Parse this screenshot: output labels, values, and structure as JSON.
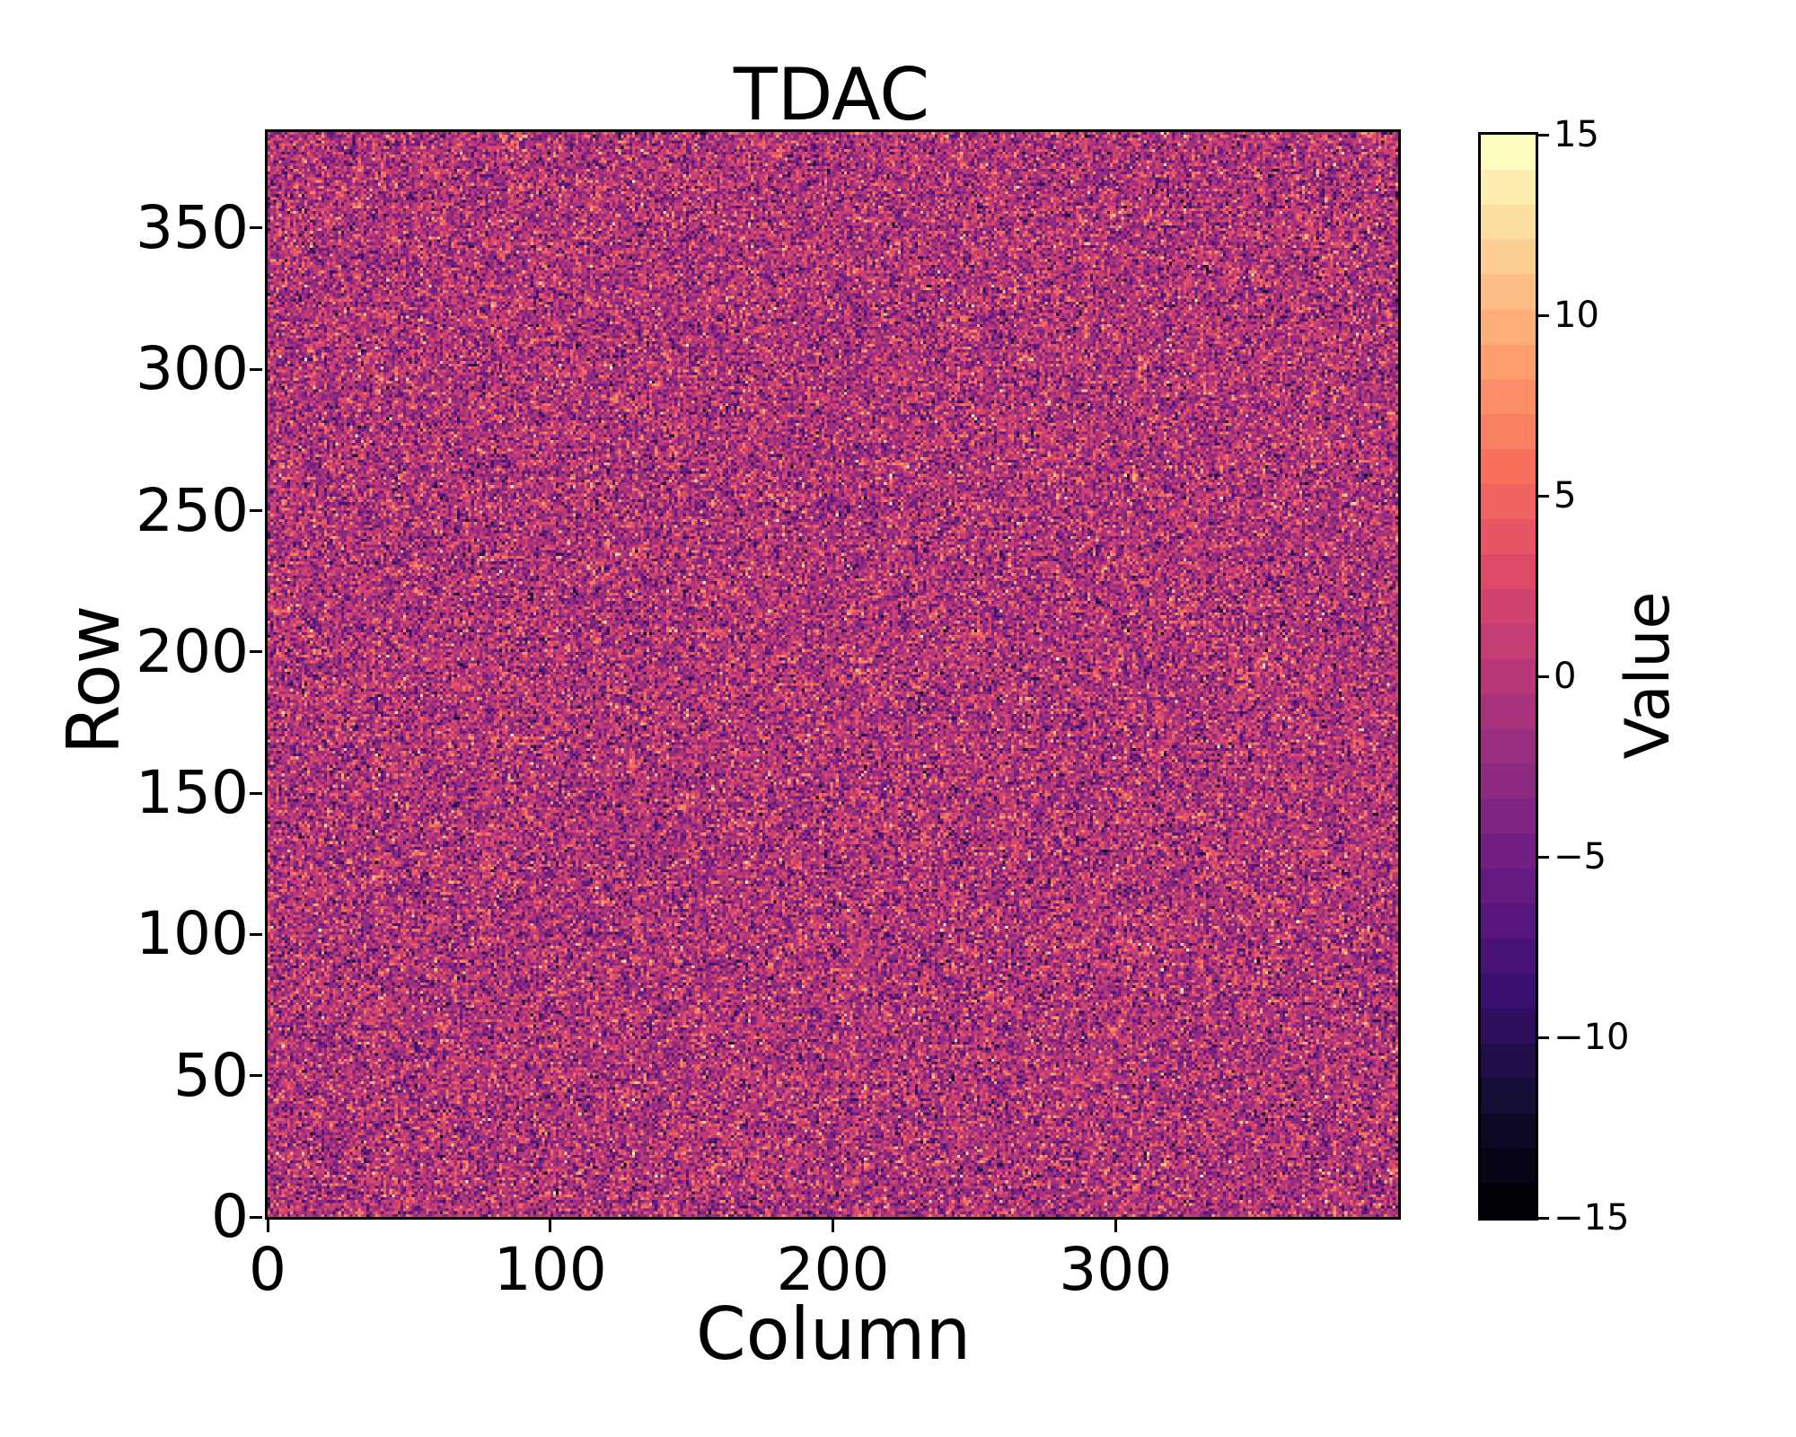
{
  "figure": {
    "title": "TDAC",
    "xlabel": "Column",
    "ylabel": "Row",
    "colorbar_label": "Value"
  },
  "chart_data": {
    "type": "heatmap",
    "title": "TDAC",
    "xlabel": "Column",
    "ylabel": "Row",
    "colorbar_label": "Value",
    "n_cols": 400,
    "n_rows": 384,
    "xlim": [
      0,
      400
    ],
    "ylim": [
      0,
      384
    ],
    "x_ticks": [
      0,
      100,
      200,
      300
    ],
    "x_tick_labels": [
      "0",
      "100",
      "200",
      "300"
    ],
    "y_ticks": [
      0,
      50,
      100,
      150,
      200,
      250,
      300,
      350
    ],
    "y_tick_labels": [
      "0",
      "50",
      "100",
      "150",
      "200",
      "250",
      "300",
      "350"
    ],
    "colorbar_ticks": [
      15,
      10,
      5,
      0,
      -5,
      -10,
      -15
    ],
    "colorbar_tick_labels": [
      "15",
      "10",
      "5",
      "0",
      "−5",
      "−10",
      "−15"
    ],
    "value_range": [
      -15,
      15
    ],
    "n_color_levels": 31,
    "colormap": "magma",
    "colormap_stops": [
      [
        0.0,
        "#000004"
      ],
      [
        0.1,
        "#140e36"
      ],
      [
        0.2,
        "#3b0f70"
      ],
      [
        0.3,
        "#641a80"
      ],
      [
        0.4,
        "#8c2981"
      ],
      [
        0.5,
        "#b73779"
      ],
      [
        0.6,
        "#de4968"
      ],
      [
        0.7,
        "#f7705c"
      ],
      [
        0.8,
        "#fe9f6d"
      ],
      [
        0.9,
        "#fecf92"
      ],
      [
        1.0,
        "#fcfdbf"
      ]
    ],
    "distribution": {
      "type": "gaussian-integer-noise",
      "mean": -0.5,
      "sigma": 4.3,
      "clip": [
        -15,
        15
      ],
      "seed": 1337
    },
    "grid": false,
    "legend_position": "colorbar-right",
    "axis_color": "#000000",
    "background_color": "#ffffff"
  }
}
